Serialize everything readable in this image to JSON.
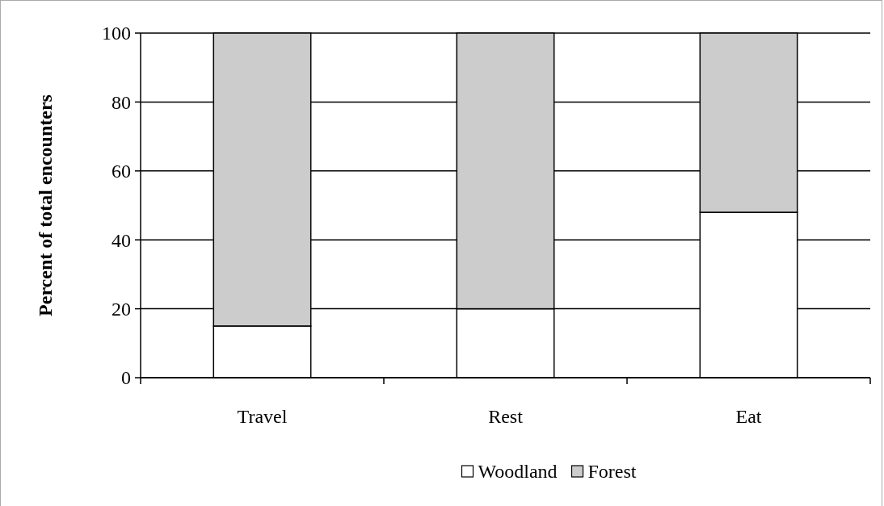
{
  "chart_data": {
    "type": "bar",
    "stacked": true,
    "ylabel": "Percent of total encounters",
    "categories": [
      "Travel",
      "Rest",
      "Eat"
    ],
    "series": [
      {
        "name": "Woodland",
        "color": "#ffffff",
        "values": [
          15,
          20,
          48
        ]
      },
      {
        "name": "Forest",
        "color": "#cccccc",
        "values": [
          85,
          80,
          52
        ]
      }
    ],
    "ylim": [
      0,
      100
    ],
    "yticks": [
      0,
      20,
      40,
      60,
      80,
      100
    ],
    "grid": "y",
    "legend": "bottom"
  }
}
